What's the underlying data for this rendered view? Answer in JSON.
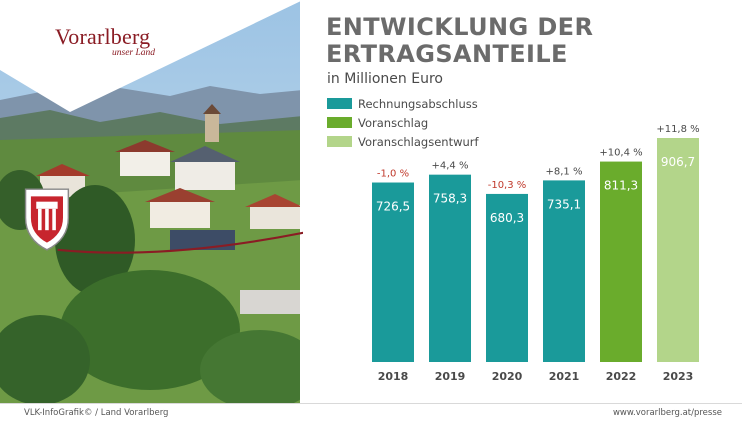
{
  "brand": {
    "name": "Vorarlberg",
    "tagline": "unser Land"
  },
  "header": {
    "title_line1": "ENTWICKLUNG DER",
    "title_line2": "ERTRAGSANTEILE",
    "subtitle": "in Millionen Euro"
  },
  "legend": [
    {
      "label": "Rechnungsabschluss",
      "color": "#1a9a9a"
    },
    {
      "label": "Voranschlag",
      "color": "#6aac2c"
    },
    {
      "label": "Voranschlagsentwurf",
      "color": "#b3d58a"
    }
  ],
  "chart_data": {
    "type": "bar",
    "title": "ENTWICKLUNG DER ERTRAGSANTEILE",
    "subtitle": "in Millionen Euro",
    "categories": [
      "2018",
      "2019",
      "2020",
      "2021",
      "2022",
      "2023"
    ],
    "values": [
      726.5,
      758.3,
      680.3,
      735.1,
      811.3,
      906.7
    ],
    "value_labels": [
      "726,5",
      "758,3",
      "680,3",
      "735,1",
      "811,3",
      "906,7"
    ],
    "changes": [
      "-1,0 %",
      "+4,4 %",
      "-10,3 %",
      "+8,1 %",
      "+10,4 %",
      "+11,8 %"
    ],
    "change_colors": [
      "#c0392b",
      "#4a4a4a",
      "#c0392b",
      "#4a4a4a",
      "#4a4a4a",
      "#4a4a4a"
    ],
    "series_type": [
      "Rechnungsabschluss",
      "Rechnungsabschluss",
      "Rechnungsabschluss",
      "Rechnungsabschluss",
      "Voranschlag",
      "Voranschlagsentwurf"
    ],
    "bar_colors": [
      "#1a9a9a",
      "#1a9a9a",
      "#1a9a9a",
      "#1a9a9a",
      "#6aac2c",
      "#b3d58a"
    ],
    "ylim": [
      0,
      906.7
    ],
    "grid": false,
    "legend_position": "top-left"
  },
  "footer": {
    "left": "VLK-InfoGrafik© / Land Vorarlberg",
    "right": "www.vorarlberg.at/presse"
  }
}
